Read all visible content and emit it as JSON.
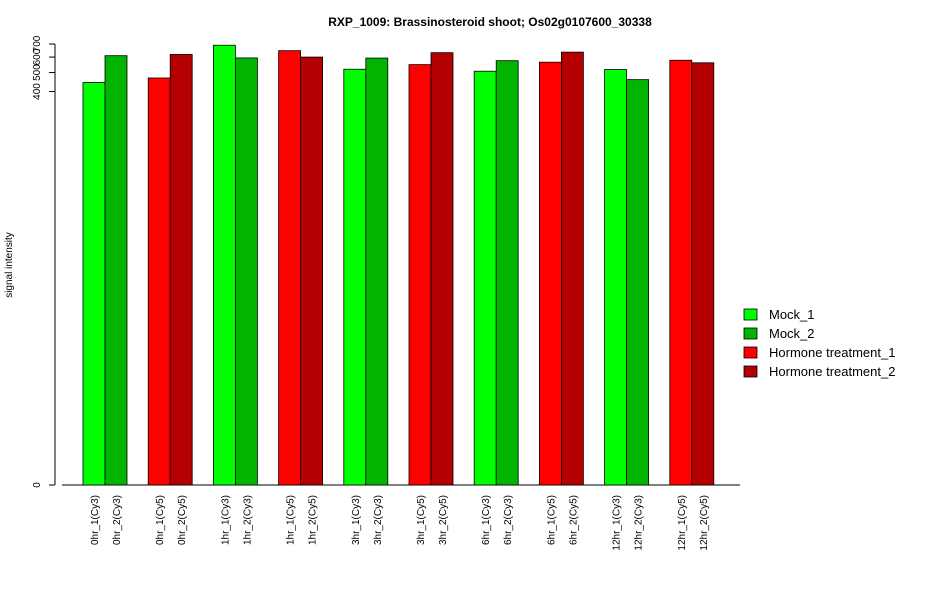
{
  "chart_data": {
    "type": "bar",
    "title": "RXP_1009: Brassinosteroid shoot; Os02g0107600_30338",
    "xlabel": "",
    "ylabel": "signal intensity",
    "ylim": [
      0,
      700
    ],
    "y_ticks": [
      0,
      400,
      500,
      600,
      700
    ],
    "y_scale": "log",
    "grid": false,
    "legend_position": "right",
    "series": [
      {
        "name": "Mock_1",
        "color": "#00ff00"
      },
      {
        "name": "Mock_2",
        "color": "#00b400"
      },
      {
        "name": "Hormone treatment_1",
        "color": "#ff0000"
      },
      {
        "name": "Hormone treatment_2",
        "color": "#b40000"
      }
    ],
    "bars": [
      {
        "label": "0hr_1(Cy3)",
        "value": 445,
        "series": 0
      },
      {
        "label": "0hr_2(Cy3)",
        "value": 610,
        "series": 1
      },
      {
        "label": "0hr_1(Cy5)",
        "value": 469,
        "series": 2
      },
      {
        "label": "0hr_2(Cy5)",
        "value": 619,
        "series": 3
      },
      {
        "label": "1hr_1(Cy3)",
        "value": 690,
        "series": 0
      },
      {
        "label": "1hr_2(Cy3)",
        "value": 594,
        "series": 1
      },
      {
        "label": "1hr_1(Cy5)",
        "value": 647,
        "series": 2
      },
      {
        "label": "1hr_2(Cy5)",
        "value": 600,
        "series": 3
      },
      {
        "label": "3hr_1(Cy3)",
        "value": 520,
        "series": 0
      },
      {
        "label": "3hr_2(Cy3)",
        "value": 593,
        "series": 1
      },
      {
        "label": "3hr_1(Cy5)",
        "value": 549,
        "series": 2
      },
      {
        "label": "3hr_2(Cy5)",
        "value": 632,
        "series": 3
      },
      {
        "label": "6hr_1(Cy3)",
        "value": 508,
        "series": 0
      },
      {
        "label": "6hr_2(Cy3)",
        "value": 575,
        "series": 1
      },
      {
        "label": "6hr_1(Cy5)",
        "value": 565,
        "series": 2
      },
      {
        "label": "6hr_2(Cy5)",
        "value": 636,
        "series": 3
      },
      {
        "label": "12hr_1(Cy3)",
        "value": 518,
        "series": 0
      },
      {
        "label": "12hr_2(Cy3)",
        "value": 460,
        "series": 1
      },
      {
        "label": "12hr_1(Cy5)",
        "value": 578,
        "series": 2
      },
      {
        "label": "12hr_2(Cy5)",
        "value": 561,
        "series": 3
      }
    ]
  }
}
